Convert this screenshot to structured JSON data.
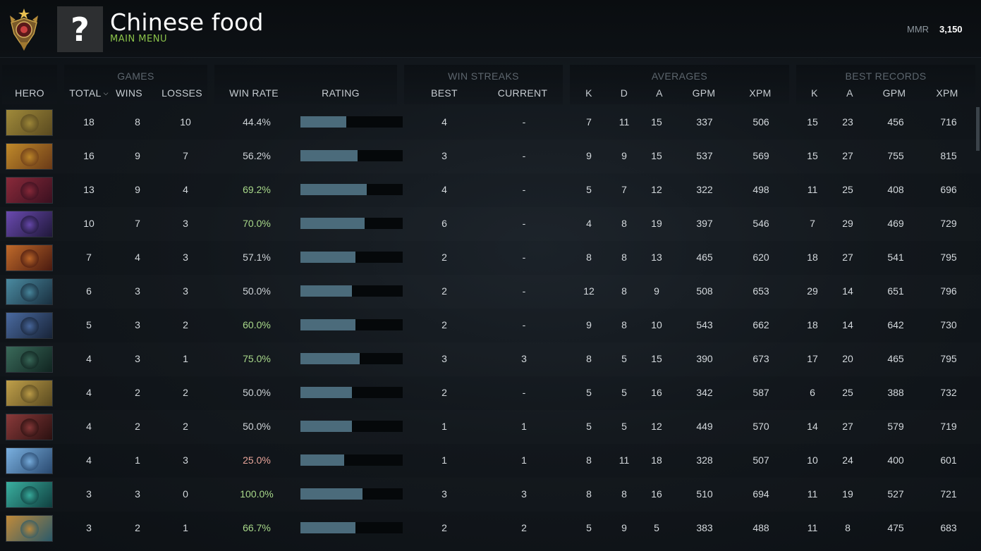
{
  "header": {
    "player_name": "Chinese food",
    "sub_label": "MAIN MENU",
    "avatar_glyph": "?",
    "mmr_label": "MMR",
    "mmr_value": "3,150"
  },
  "groups": {
    "games": "GAMES",
    "win_streaks": "WIN STREAKS",
    "averages": "AVERAGES",
    "best_records": "BEST RECORDS"
  },
  "columns": {
    "hero": "HERO",
    "total": "TOTAL",
    "wins": "WINS",
    "losses": "LOSSES",
    "win_rate": "WIN RATE",
    "rating": "RATING",
    "best": "BEST",
    "current": "CURRENT",
    "avg_k": "K",
    "avg_d": "D",
    "avg_a": "A",
    "avg_gpm": "GPM",
    "avg_xpm": "XPM",
    "best_k": "K",
    "best_a": "A",
    "best_gpm": "GPM",
    "best_xpm": "XPM"
  },
  "colors": {
    "good_winrate": "#a9d98a",
    "bad_winrate": "#e8a59a",
    "bar_fill": "#4b6b7b",
    "sub_label": "#8bc34a"
  },
  "rows": [
    {
      "hero_icon": "hero-portrait-icon",
      "total": "18",
      "wins": "8",
      "losses": "10",
      "win_rate": "44.4%",
      "rating": 0.45,
      "tone": "neutral",
      "best": "4",
      "current": "-",
      "avg_k": "7",
      "avg_d": "11",
      "avg_a": "15",
      "avg_gpm": "337",
      "avg_xpm": "506",
      "best_k": "15",
      "best_a": "23",
      "best_gpm": "456",
      "best_xpm": "716"
    },
    {
      "hero_icon": "hero-portrait-icon",
      "total": "16",
      "wins": "9",
      "losses": "7",
      "win_rate": "56.2%",
      "rating": 0.56,
      "tone": "neutral",
      "best": "3",
      "current": "-",
      "avg_k": "9",
      "avg_d": "9",
      "avg_a": "15",
      "avg_gpm": "537",
      "avg_xpm": "569",
      "best_k": "15",
      "best_a": "27",
      "best_gpm": "755",
      "best_xpm": "815"
    },
    {
      "hero_icon": "hero-portrait-icon",
      "total": "13",
      "wins": "9",
      "losses": "4",
      "win_rate": "69.2%",
      "rating": 0.65,
      "tone": "good",
      "best": "4",
      "current": "-",
      "avg_k": "5",
      "avg_d": "7",
      "avg_a": "12",
      "avg_gpm": "322",
      "avg_xpm": "498",
      "best_k": "11",
      "best_a": "25",
      "best_gpm": "408",
      "best_xpm": "696"
    },
    {
      "hero_icon": "hero-portrait-icon",
      "total": "10",
      "wins": "7",
      "losses": "3",
      "win_rate": "70.0%",
      "rating": 0.63,
      "tone": "good",
      "best": "6",
      "current": "-",
      "avg_k": "4",
      "avg_d": "8",
      "avg_a": "19",
      "avg_gpm": "397",
      "avg_xpm": "546",
      "best_k": "7",
      "best_a": "29",
      "best_gpm": "469",
      "best_xpm": "729"
    },
    {
      "hero_icon": "hero-portrait-icon",
      "total": "7",
      "wins": "4",
      "losses": "3",
      "win_rate": "57.1%",
      "rating": 0.54,
      "tone": "neutral",
      "best": "2",
      "current": "-",
      "avg_k": "8",
      "avg_d": "8",
      "avg_a": "13",
      "avg_gpm": "465",
      "avg_xpm": "620",
      "best_k": "18",
      "best_a": "27",
      "best_gpm": "541",
      "best_xpm": "795"
    },
    {
      "hero_icon": "hero-portrait-icon",
      "total": "6",
      "wins": "3",
      "losses": "3",
      "win_rate": "50.0%",
      "rating": 0.5,
      "tone": "neutral",
      "best": "2",
      "current": "-",
      "avg_k": "12",
      "avg_d": "8",
      "avg_a": "9",
      "avg_gpm": "508",
      "avg_xpm": "653",
      "best_k": "29",
      "best_a": "14",
      "best_gpm": "651",
      "best_xpm": "796"
    },
    {
      "hero_icon": "hero-portrait-icon",
      "total": "5",
      "wins": "3",
      "losses": "2",
      "win_rate": "60.0%",
      "rating": 0.54,
      "tone": "good",
      "best": "2",
      "current": "-",
      "avg_k": "9",
      "avg_d": "8",
      "avg_a": "10",
      "avg_gpm": "543",
      "avg_xpm": "662",
      "best_k": "18",
      "best_a": "14",
      "best_gpm": "642",
      "best_xpm": "730"
    },
    {
      "hero_icon": "hero-portrait-icon",
      "total": "4",
      "wins": "3",
      "losses": "1",
      "win_rate": "75.0%",
      "rating": 0.58,
      "tone": "good",
      "best": "3",
      "current": "3",
      "avg_k": "8",
      "avg_d": "5",
      "avg_a": "15",
      "avg_gpm": "390",
      "avg_xpm": "673",
      "best_k": "17",
      "best_a": "20",
      "best_gpm": "465",
      "best_xpm": "795"
    },
    {
      "hero_icon": "hero-portrait-icon",
      "total": "4",
      "wins": "2",
      "losses": "2",
      "win_rate": "50.0%",
      "rating": 0.5,
      "tone": "neutral",
      "best": "2",
      "current": "-",
      "avg_k": "5",
      "avg_d": "5",
      "avg_a": "16",
      "avg_gpm": "342",
      "avg_xpm": "587",
      "best_k": "6",
      "best_a": "25",
      "best_gpm": "388",
      "best_xpm": "732"
    },
    {
      "hero_icon": "hero-portrait-icon",
      "total": "4",
      "wins": "2",
      "losses": "2",
      "win_rate": "50.0%",
      "rating": 0.5,
      "tone": "neutral",
      "best": "1",
      "current": "1",
      "avg_k": "5",
      "avg_d": "5",
      "avg_a": "12",
      "avg_gpm": "449",
      "avg_xpm": "570",
      "best_k": "14",
      "best_a": "27",
      "best_gpm": "579",
      "best_xpm": "719"
    },
    {
      "hero_icon": "hero-portrait-icon",
      "total": "4",
      "wins": "1",
      "losses": "3",
      "win_rate": "25.0%",
      "rating": 0.43,
      "tone": "bad",
      "best": "1",
      "current": "1",
      "avg_k": "8",
      "avg_d": "11",
      "avg_a": "18",
      "avg_gpm": "328",
      "avg_xpm": "507",
      "best_k": "10",
      "best_a": "24",
      "best_gpm": "400",
      "best_xpm": "601"
    },
    {
      "hero_icon": "hero-portrait-icon",
      "total": "3",
      "wins": "3",
      "losses": "0",
      "win_rate": "100.0%",
      "rating": 0.61,
      "tone": "good",
      "best": "3",
      "current": "3",
      "avg_k": "8",
      "avg_d": "8",
      "avg_a": "16",
      "avg_gpm": "510",
      "avg_xpm": "694",
      "best_k": "11",
      "best_a": "19",
      "best_gpm": "527",
      "best_xpm": "721"
    },
    {
      "hero_icon": "hero-portrait-icon",
      "total": "3",
      "wins": "2",
      "losses": "1",
      "win_rate": "66.7%",
      "rating": 0.54,
      "tone": "good",
      "best": "2",
      "current": "2",
      "avg_k": "5",
      "avg_d": "9",
      "avg_a": "5",
      "avg_gpm": "383",
      "avg_xpm": "488",
      "best_k": "11",
      "best_a": "8",
      "best_gpm": "475",
      "best_xpm": "683"
    }
  ]
}
